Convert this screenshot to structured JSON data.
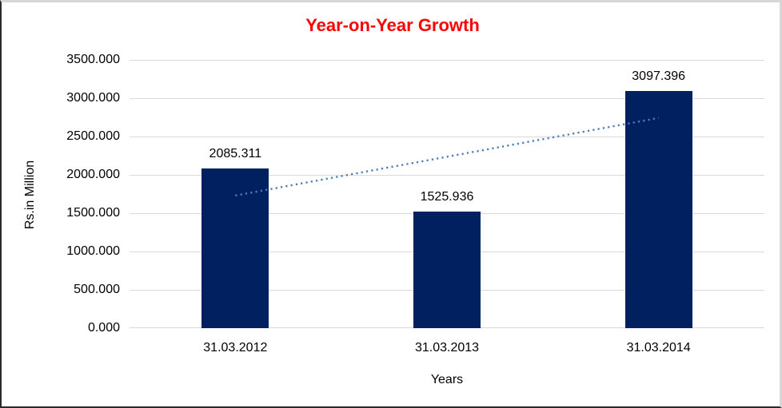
{
  "figure": {
    "background": "#ffffff",
    "border_light": "#d7d7d7",
    "border_dark": "#2b2b2b"
  },
  "chart_data": {
    "type": "bar",
    "title": "Year-on-Year Growth",
    "title_color": "#ff0000",
    "categories": [
      "31.03.2012",
      "31.03.2013",
      "31.03.2014"
    ],
    "values": [
      2085.311,
      1525.936,
      3097.396
    ],
    "value_labels": [
      "2085.311",
      "1525.936",
      "3097.396"
    ],
    "xlabel": "Years",
    "ylabel": "Rs.in Million",
    "ylim": [
      0,
      3500
    ],
    "ytick_step": 500,
    "ytick_labels": [
      "0.000",
      "500.000",
      "1000.000",
      "1500.000",
      "2000.000",
      "2500.000",
      "3000.000",
      "3500.000"
    ],
    "grid": "horizontal",
    "legend": "none",
    "bar_color": "#002060",
    "gridline_color": "#d9d9d9",
    "axis_line_color": "#d9d9d9",
    "trendline": {
      "type": "linear",
      "style": "dotted",
      "color": "#4a7ebb"
    }
  }
}
